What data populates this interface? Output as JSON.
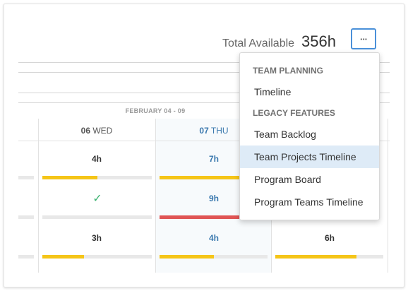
{
  "summary": {
    "label": "Total Available",
    "value": "356h"
  },
  "more_button": {
    "label": "···",
    "icon": "more-horizontal-icon"
  },
  "timeline": {
    "range_label": "FEBRUARY 04 - 09",
    "days": [
      {
        "num": "06",
        "name": "WED"
      },
      {
        "num": "07",
        "name": "THU"
      }
    ],
    "rows": [
      {
        "cells": [
          {
            "value": "4h",
            "fill": 0.5,
            "color": "#f5c518"
          },
          {
            "value": "7h",
            "fill": 1.0,
            "color": "#f5c518"
          },
          {
            "value": "",
            "fill": 0,
            "color": "#f5c518"
          }
        ]
      },
      {
        "cells": [
          {
            "value": "✓",
            "fill": 1.0,
            "color": "#e8e8e8"
          },
          {
            "value": "9h",
            "fill": 1.0,
            "color": "#e05555"
          },
          {
            "value": "",
            "fill": 0,
            "color": "#f5c518"
          }
        ]
      },
      {
        "cells": [
          {
            "value": "3h",
            "fill": 0.38,
            "color": "#f5c518"
          },
          {
            "value": "4h",
            "fill": 0.5,
            "color": "#f5c518"
          },
          {
            "value": "6h",
            "fill": 0.75,
            "color": "#f5c518"
          }
        ]
      }
    ]
  },
  "menu": {
    "sections": [
      {
        "title": "TEAM PLANNING",
        "items": [
          {
            "label": "Timeline"
          }
        ]
      },
      {
        "title": "LEGACY FEATURES",
        "items": [
          {
            "label": "Team Backlog"
          },
          {
            "label": "Team Projects Timeline",
            "selected": true
          },
          {
            "label": "Program Board"
          },
          {
            "label": "Program Teams Timeline"
          }
        ]
      }
    ]
  },
  "colors": {
    "accent": "#4a90d9",
    "today_text": "#3a78ae",
    "bar_yellow": "#f5c518",
    "bar_red": "#e05555",
    "check_green": "#3cb371",
    "menu_selected": "#deebf7"
  }
}
